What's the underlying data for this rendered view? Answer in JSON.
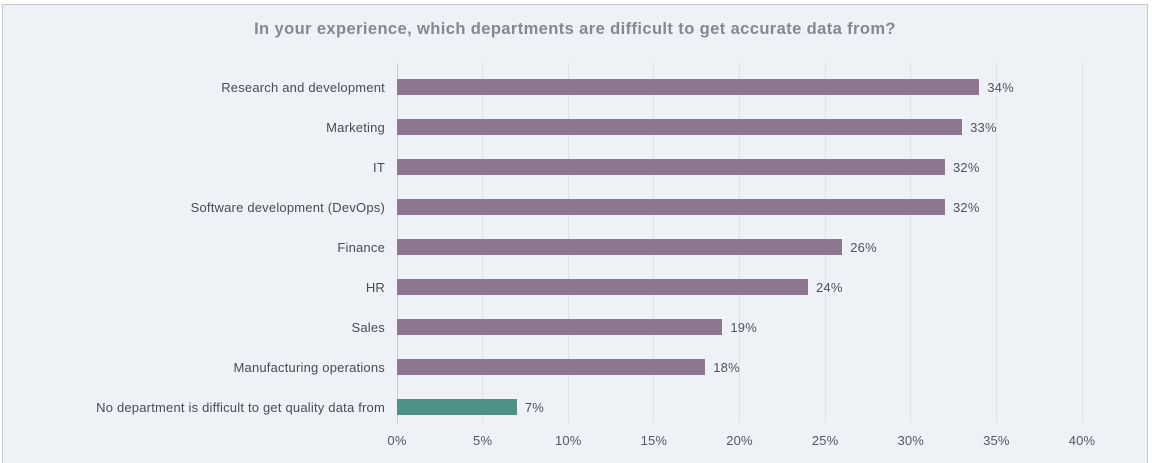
{
  "chart_data": {
    "type": "bar",
    "orientation": "horizontal",
    "title": "In your experience, which departments are difficult to get accurate data from?",
    "categories": [
      "Research and development",
      "Marketing",
      "IT",
      "Software development (DevOps)",
      "Finance",
      "HR",
      "Sales",
      "Manufacturing operations",
      "No department is difficult to get quality data from"
    ],
    "values": [
      34,
      33,
      32,
      32,
      26,
      24,
      19,
      18,
      7
    ],
    "value_labels": [
      "34%",
      "33%",
      "32%",
      "32%",
      "26%",
      "24%",
      "19%",
      "18%",
      "7%"
    ],
    "bar_colors": [
      "#8d7690",
      "#8d7690",
      "#8d7690",
      "#8d7690",
      "#8d7690",
      "#8d7690",
      "#8d7690",
      "#8d7690",
      "#4f9187"
    ],
    "xlabel": "",
    "ylabel": "",
    "xlim": [
      0,
      40
    ],
    "x_ticks": [
      "0%",
      "5%",
      "10%",
      "15%",
      "20%",
      "25%",
      "30%",
      "35%",
      "40%"
    ],
    "x_tick_values": [
      0,
      5,
      10,
      15,
      20,
      25,
      30,
      35,
      40
    ],
    "grid": "vertical-on",
    "legend": "none"
  },
  "colors": {
    "bar_default": "#8d7690",
    "bar_highlight": "#4f9187",
    "card_background": "#eef1f5",
    "gridline": "#dfe2e6",
    "title_text": "#838994",
    "label_text": "#484c53",
    "border": "#c6cad0"
  }
}
